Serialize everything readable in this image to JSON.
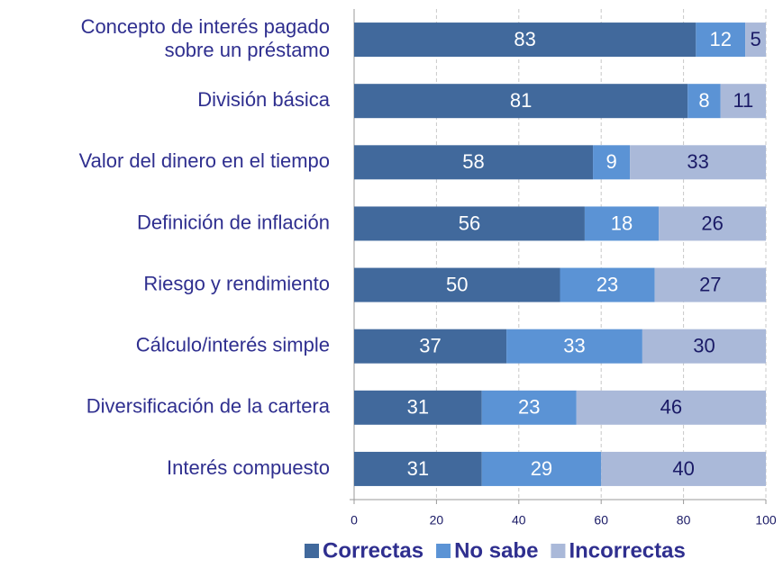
{
  "chart_data": {
    "type": "stacked_barh",
    "categories": [
      "Concepto de interés pagado sobre un préstamo",
      "División básica",
      "Valor del dinero en el tiempo",
      "Definición de inflación",
      "Riesgo y rendimiento",
      "Cálculo/interés simple",
      "Diversificación de la cartera",
      "Interés compuesto"
    ],
    "series": [
      {
        "name": "Correctas",
        "color": "#41699c",
        "label_color": "#ffffff",
        "values": [
          83,
          81,
          58,
          56,
          50,
          37,
          31,
          31
        ]
      },
      {
        "name": "No sabe",
        "color": "#5b93d5",
        "label_color": "#ffffff",
        "values": [
          12,
          8,
          9,
          18,
          23,
          33,
          23,
          29
        ]
      },
      {
        "name": "Incorrectas",
        "color": "#aab9d9",
        "label_color": "#1a1a66",
        "values": [
          5,
          11,
          33,
          26,
          27,
          30,
          46,
          40
        ]
      }
    ],
    "xlim": [
      0,
      100
    ],
    "xticks": [
      0,
      20,
      40,
      60,
      80,
      100
    ],
    "grid": true,
    "legend": "bottom"
  }
}
